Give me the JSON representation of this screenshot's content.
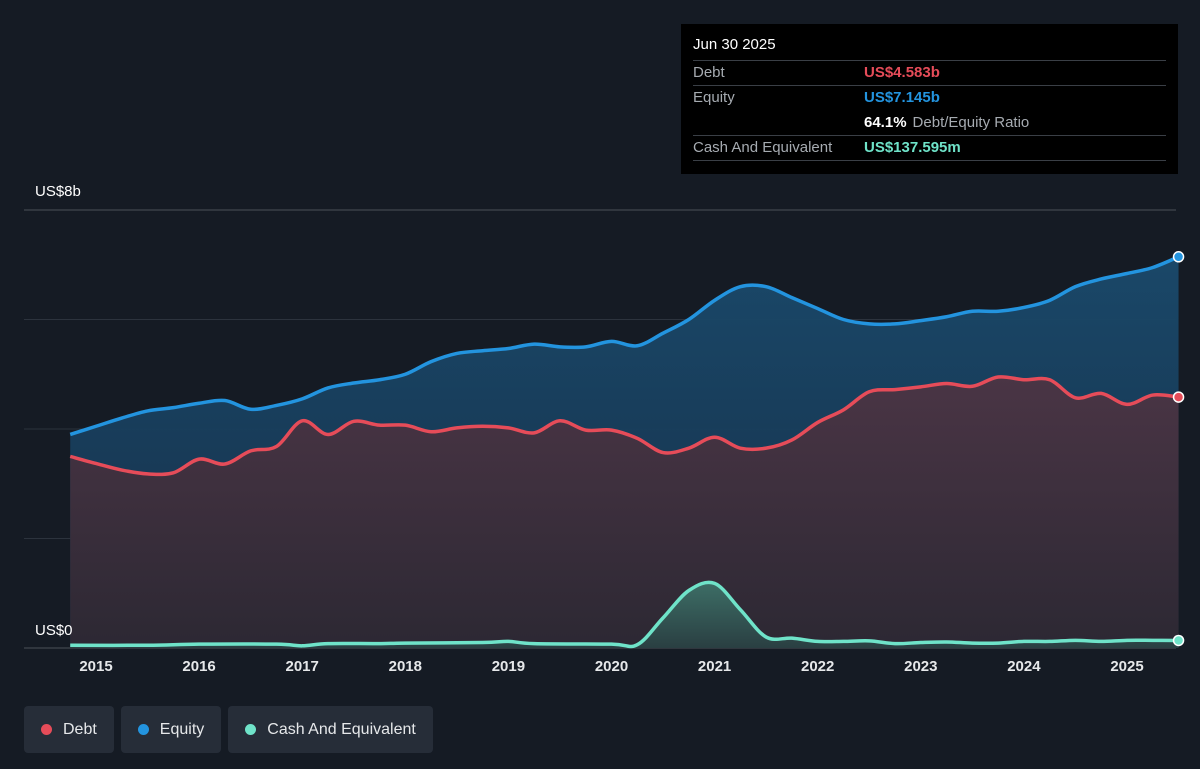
{
  "tooltip": {
    "date": "Jun 30 2025",
    "debt_label": "Debt",
    "debt_value": "US$4.583b",
    "equity_label": "Equity",
    "equity_value": "US$7.145b",
    "ratio_value": "64.1%",
    "ratio_label": "Debt/Equity Ratio",
    "cash_label": "Cash And Equivalent",
    "cash_value": "US$137.595m"
  },
  "colors": {
    "debt": "#e64c59",
    "equity": "#2394df",
    "cash": "#6fe3c9",
    "background": "#151b24"
  },
  "legend": {
    "debt": "Debt",
    "equity": "Equity",
    "cash": "Cash And Equivalent"
  },
  "chart_data": {
    "type": "area",
    "ylim": [
      0,
      8
    ],
    "y_unit": "US$ billions",
    "y_tick_labels": {
      "top": "US$8b",
      "bottom": "US$0"
    },
    "x_tick_labels": [
      "2015",
      "2016",
      "2017",
      "2018",
      "2019",
      "2020",
      "2021",
      "2022",
      "2023",
      "2024",
      "2025"
    ],
    "grid": true,
    "legend_position": "bottom-left",
    "series": [
      {
        "name": "Equity",
        "points": [
          [
            2014.75,
            3.9
          ],
          [
            2015.0,
            4.05
          ],
          [
            2015.25,
            4.2
          ],
          [
            2015.5,
            4.33
          ],
          [
            2015.75,
            4.39
          ],
          [
            2016.0,
            4.47
          ],
          [
            2016.25,
            4.52
          ],
          [
            2016.5,
            4.36
          ],
          [
            2016.75,
            4.43
          ],
          [
            2017.0,
            4.55
          ],
          [
            2017.25,
            4.75
          ],
          [
            2017.5,
            4.84
          ],
          [
            2017.75,
            4.9
          ],
          [
            2018.0,
            5.0
          ],
          [
            2018.25,
            5.23
          ],
          [
            2018.5,
            5.38
          ],
          [
            2018.75,
            5.43
          ],
          [
            2019.0,
            5.47
          ],
          [
            2019.25,
            5.55
          ],
          [
            2019.5,
            5.5
          ],
          [
            2019.75,
            5.5
          ],
          [
            2020.0,
            5.6
          ],
          [
            2020.25,
            5.52
          ],
          [
            2020.5,
            5.75
          ],
          [
            2020.75,
            6.0
          ],
          [
            2021.0,
            6.35
          ],
          [
            2021.25,
            6.6
          ],
          [
            2021.5,
            6.6
          ],
          [
            2021.75,
            6.4
          ],
          [
            2022.0,
            6.2
          ],
          [
            2022.25,
            6.0
          ],
          [
            2022.5,
            5.92
          ],
          [
            2022.75,
            5.92
          ],
          [
            2023.0,
            5.98
          ],
          [
            2023.25,
            6.05
          ],
          [
            2023.5,
            6.15
          ],
          [
            2023.75,
            6.15
          ],
          [
            2024.0,
            6.22
          ],
          [
            2024.25,
            6.35
          ],
          [
            2024.5,
            6.6
          ],
          [
            2024.75,
            6.74
          ],
          [
            2025.0,
            6.84
          ],
          [
            2025.25,
            6.95
          ],
          [
            2025.5,
            7.145
          ]
        ]
      },
      {
        "name": "Debt",
        "points": [
          [
            2014.75,
            3.5
          ],
          [
            2015.0,
            3.37
          ],
          [
            2015.25,
            3.25
          ],
          [
            2015.5,
            3.18
          ],
          [
            2015.75,
            3.2
          ],
          [
            2016.0,
            3.45
          ],
          [
            2016.25,
            3.36
          ],
          [
            2016.5,
            3.6
          ],
          [
            2016.75,
            3.68
          ],
          [
            2017.0,
            4.15
          ],
          [
            2017.25,
            3.9
          ],
          [
            2017.5,
            4.14
          ],
          [
            2017.75,
            4.07
          ],
          [
            2018.0,
            4.07
          ],
          [
            2018.25,
            3.95
          ],
          [
            2018.5,
            4.02
          ],
          [
            2018.75,
            4.05
          ],
          [
            2019.0,
            4.02
          ],
          [
            2019.25,
            3.93
          ],
          [
            2019.5,
            4.15
          ],
          [
            2019.75,
            3.98
          ],
          [
            2020.0,
            3.98
          ],
          [
            2020.25,
            3.83
          ],
          [
            2020.5,
            3.57
          ],
          [
            2020.75,
            3.65
          ],
          [
            2021.0,
            3.85
          ],
          [
            2021.25,
            3.65
          ],
          [
            2021.5,
            3.65
          ],
          [
            2021.75,
            3.8
          ],
          [
            2022.0,
            4.12
          ],
          [
            2022.25,
            4.35
          ],
          [
            2022.5,
            4.68
          ],
          [
            2022.75,
            4.72
          ],
          [
            2023.0,
            4.77
          ],
          [
            2023.25,
            4.83
          ],
          [
            2023.5,
            4.78
          ],
          [
            2023.75,
            4.95
          ],
          [
            2024.0,
            4.9
          ],
          [
            2024.25,
            4.9
          ],
          [
            2024.5,
            4.57
          ],
          [
            2024.75,
            4.65
          ],
          [
            2025.0,
            4.45
          ],
          [
            2025.25,
            4.62
          ],
          [
            2025.5,
            4.583
          ]
        ]
      },
      {
        "name": "Cash And Equivalent",
        "points": [
          [
            2014.75,
            0.05
          ],
          [
            2015.5,
            0.05
          ],
          [
            2016.0,
            0.07
          ],
          [
            2016.75,
            0.07
          ],
          [
            2017.0,
            0.04
          ],
          [
            2017.25,
            0.08
          ],
          [
            2017.75,
            0.08
          ],
          [
            2018.0,
            0.09
          ],
          [
            2018.75,
            0.1
          ],
          [
            2019.0,
            0.12
          ],
          [
            2019.25,
            0.08
          ],
          [
            2020.0,
            0.07
          ],
          [
            2020.25,
            0.06
          ],
          [
            2020.5,
            0.55
          ],
          [
            2020.75,
            1.05
          ],
          [
            2021.0,
            1.18
          ],
          [
            2021.25,
            0.7
          ],
          [
            2021.5,
            0.2
          ],
          [
            2021.75,
            0.18
          ],
          [
            2022.0,
            0.12
          ],
          [
            2022.25,
            0.12
          ],
          [
            2022.5,
            0.13
          ],
          [
            2022.75,
            0.08
          ],
          [
            2023.0,
            0.1
          ],
          [
            2023.25,
            0.11
          ],
          [
            2023.5,
            0.09
          ],
          [
            2023.75,
            0.09
          ],
          [
            2024.0,
            0.12
          ],
          [
            2024.25,
            0.12
          ],
          [
            2024.5,
            0.14
          ],
          [
            2024.75,
            0.12
          ],
          [
            2025.0,
            0.14
          ],
          [
            2025.25,
            0.14
          ],
          [
            2025.5,
            0.138
          ]
        ]
      }
    ]
  }
}
